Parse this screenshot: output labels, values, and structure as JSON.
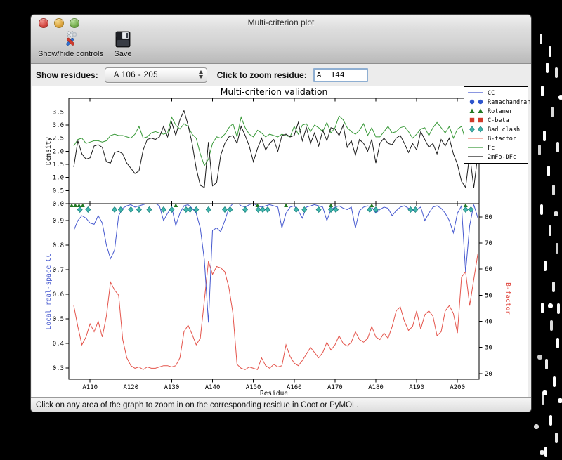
{
  "window": {
    "title": "Multi-criterion plot"
  },
  "toolbar": {
    "buttons": [
      {
        "label": "Show/hide controls",
        "icon": "tools-icon"
      },
      {
        "label": "Save",
        "icon": "save-icon"
      }
    ]
  },
  "controls": {
    "show_residues_label": "Show residues:",
    "residue_range_value": "A 106 - 205",
    "zoom_residue_label": "Click to zoom residue:",
    "zoom_residue_value": "A  144"
  },
  "status_bar": {
    "text": "Click on any area of the graph to zoom in on the corresponding residue in Coot or PyMOL."
  },
  "chart_data": {
    "type": "line",
    "title": "Multi-criterion validation",
    "xlabel": "Residue",
    "xlim": [
      104.8,
      205.3
    ],
    "x_start": 106,
    "x_ticks": [
      {
        "value": 110,
        "label": "A110"
      },
      {
        "value": 120,
        "label": "A120"
      },
      {
        "value": 130,
        "label": "A130"
      },
      {
        "value": 140,
        "label": "A140"
      },
      {
        "value": 150,
        "label": "A150"
      },
      {
        "value": 160,
        "label": "A160"
      },
      {
        "value": 170,
        "label": "A170"
      },
      {
        "value": 180,
        "label": "A180"
      },
      {
        "value": 190,
        "label": "A190"
      },
      {
        "value": 200,
        "label": "A200"
      }
    ],
    "legend": {
      "position": "upper right",
      "entries": [
        {
          "label": "CC",
          "glyph": "line",
          "color": "#4659cf"
        },
        {
          "label": "Ramachandran",
          "glyph": "circles",
          "color": "#2e55cc"
        },
        {
          "label": "Rotamer",
          "glyph": "triangles",
          "color": "#217821"
        },
        {
          "label": "C-beta",
          "glyph": "squares",
          "color": "#d03a2a"
        },
        {
          "label": "Bad clash",
          "glyph": "diamonds",
          "color": "#40b4ac",
          "stroke": "#157f7a"
        },
        {
          "label": "B-factor",
          "glyph": "line",
          "color": "#f08a7a"
        },
        {
          "label": "Fc",
          "glyph": "line",
          "color": "#3a9a3a"
        },
        {
          "label": "2mFo-DFc",
          "glyph": "line",
          "color": "#1c1c1c"
        }
      ]
    },
    "top": {
      "ylabel": "Density",
      "ylim": [
        0,
        4.02
      ],
      "yticks": [
        0.0,
        0.5,
        1.0,
        1.5,
        2.0,
        2.5,
        3.0,
        3.5
      ],
      "grid": false,
      "series": [
        {
          "name": "Fc",
          "color": "#3a9a3a",
          "values": [
            2.2,
            2.45,
            2.5,
            2.3,
            2.35,
            2.4,
            2.4,
            2.35,
            2.4,
            2.6,
            2.65,
            2.6,
            2.6,
            2.55,
            2.5,
            2.65,
            2.95,
            2.5,
            2.55,
            2.7,
            2.75,
            2.7,
            2.65,
            2.7,
            3.3,
            3.0,
            2.85,
            3.05,
            2.95,
            2.65,
            2.5,
            1.9,
            1.45,
            1.7,
            2.3,
            2.55,
            2.5,
            2.65,
            2.9,
            3.05,
            2.55,
            3.3,
            2.9,
            2.65,
            2.55,
            2.8,
            2.7,
            2.55,
            2.65,
            2.6,
            2.55,
            2.65,
            2.6,
            2.55,
            2.95,
            2.65,
            3.0,
            3.05,
            2.75,
            3.0,
            2.9,
            2.75,
            3.1,
            2.7,
            2.9,
            3.35,
            3.2,
            2.9,
            2.75,
            2.65,
            2.8,
            3.05,
            2.6,
            2.9,
            2.55,
            2.55,
            2.75,
            2.95,
            2.7,
            2.75,
            2.9,
            2.95,
            2.75,
            2.5,
            2.65,
            2.85,
            2.9,
            2.6,
            2.9,
            3.1,
            2.9,
            2.7,
            2.95,
            2.5,
            2.85,
            2.95,
            2.4,
            1.9,
            2.65,
            2.5
          ]
        },
        {
          "name": "2mFo-DFc",
          "color": "#1c1c1c",
          "values": [
            1.4,
            2.4,
            1.9,
            1.7,
            1.75,
            2.2,
            2.25,
            2.15,
            1.6,
            1.55,
            1.95,
            2.0,
            1.9,
            1.55,
            1.35,
            1.15,
            1.25,
            2.05,
            2.45,
            2.5,
            2.45,
            2.55,
            2.95,
            2.55,
            3.1,
            2.6,
            3.2,
            3.55,
            3.0,
            2.3,
            1.35,
            0.7,
            0.62,
            2.35,
            0.68,
            0.8,
            1.85,
            2.3,
            2.55,
            2.6,
            2.3,
            2.95,
            2.6,
            2.2,
            1.6,
            2.1,
            2.5,
            2.05,
            2.3,
            2.45,
            2.0,
            2.6,
            2.65,
            2.55,
            2.6,
            3.1,
            2.4,
            2.9,
            2.3,
            2.7,
            2.2,
            2.8,
            2.4,
            2.9,
            2.85,
            2.6,
            3.0,
            2.15,
            2.4,
            1.85,
            2.45,
            2.3,
            2.0,
            2.45,
            1.55,
            2.3,
            2.5,
            2.3,
            2.25,
            2.5,
            2.6,
            2.3,
            1.95,
            2.3,
            2.05,
            2.75,
            2.45,
            2.15,
            2.3,
            1.9,
            2.45,
            2.2,
            2.5,
            1.9,
            1.5,
            0.85,
            0.62,
            1.9,
            0.6,
            1.9
          ]
        }
      ]
    },
    "bottom": {
      "ylabel_left": "Local real-space CC",
      "ylabel_left_color": "#4659cf",
      "ylabel_right": "B-factor",
      "ylabel_right_color": "#e04840",
      "ylim_left": [
        0.254,
        0.969
      ],
      "yticks_left": [
        0.3,
        0.4,
        0.5,
        0.6,
        0.7,
        0.8,
        0.9
      ],
      "ylim_right": [
        17.8,
        85.1
      ],
      "yticks_right": [
        20,
        30,
        40,
        50,
        60,
        70,
        80
      ],
      "grid": false,
      "series": [
        {
          "name": "B-factor",
          "axis": "right",
          "color": "#e4544b",
          "values": [
            46,
            38,
            31,
            34,
            39,
            36,
            40,
            34,
            42,
            55,
            52,
            50,
            33,
            26,
            23,
            22,
            22.5,
            21.5,
            22.5,
            22,
            22,
            22.5,
            23,
            23,
            22.5,
            23,
            26,
            36,
            38.5,
            35,
            31,
            33.5,
            48,
            63,
            58,
            61,
            60.5,
            59,
            53,
            43,
            23.5,
            22,
            21.5,
            22.5,
            22,
            21.5,
            26,
            23,
            22,
            23.5,
            22.5,
            23,
            31,
            26.5,
            24,
            23,
            25,
            27.5,
            30,
            28,
            26,
            28,
            32,
            29,
            31,
            34.5,
            31.5,
            30.5,
            32,
            36,
            33,
            32,
            33.5,
            38,
            34,
            33,
            35.5,
            33.5,
            38,
            44,
            45.5,
            40,
            36.5,
            38,
            44,
            37,
            42.5,
            44,
            42,
            34.5,
            36,
            44,
            46,
            43,
            35.5,
            57,
            59,
            46,
            56,
            66
          ]
        },
        {
          "name": "CC",
          "axis": "left",
          "color": "#4659cf",
          "values": [
            0.86,
            0.9,
            0.92,
            0.91,
            0.89,
            0.885,
            0.92,
            0.89,
            0.8,
            0.745,
            0.78,
            0.92,
            0.95,
            0.96,
            0.965,
            0.955,
            0.96,
            0.965,
            0.97,
            0.975,
            0.97,
            0.96,
            0.9,
            0.93,
            0.955,
            0.88,
            0.93,
            0.96,
            0.965,
            0.95,
            0.93,
            0.87,
            0.74,
            0.485,
            0.86,
            0.87,
            0.855,
            0.9,
            0.95,
            0.97,
            0.975,
            0.96,
            0.955,
            0.965,
            0.97,
            0.96,
            0.955,
            0.96,
            0.965,
            0.96,
            0.955,
            0.87,
            0.93,
            0.955,
            0.96,
            0.94,
            0.91,
            0.955,
            0.96,
            0.965,
            0.96,
            0.955,
            0.9,
            0.945,
            0.955,
            0.96,
            0.95,
            0.945,
            0.955,
            0.87,
            0.94,
            0.955,
            0.96,
            0.955,
            0.93,
            0.945,
            0.955,
            0.95,
            0.92,
            0.94,
            0.955,
            0.96,
            0.95,
            0.94,
            0.945,
            0.955,
            0.9,
            0.93,
            0.955,
            0.96,
            0.95,
            0.93,
            0.9,
            0.85,
            0.93,
            0.96,
            0.69,
            0.88,
            0.965,
            0.91
          ]
        }
      ],
      "markers": {
        "rotamer": {
          "color": "#217821",
          "shape": "triangle",
          "residues": [
            105.5,
            106.4,
            107.3,
            108.2,
            131,
            151,
            158,
            169,
            179,
            202
          ]
        },
        "bad_clash": {
          "fill": "#40b4ac",
          "stroke": "#157f7a",
          "shape": "diamond",
          "residues": [
            107.5,
            109.5,
            116,
            117.5,
            120,
            122,
            124.5,
            128,
            130,
            133.5,
            134.5,
            136,
            139,
            143,
            144.3,
            148,
            151.2,
            152.3,
            153.5,
            160.5,
            162.5,
            166,
            169,
            170.2,
            178.5,
            180,
            188.5,
            189.7,
            202,
            203.3
          ]
        },
        "ramachandran": {
          "color": "#2e55cc",
          "shape": "circle",
          "residues": []
        },
        "c_beta": {
          "color": "#d03a2a",
          "shape": "square",
          "residues": []
        }
      }
    }
  }
}
